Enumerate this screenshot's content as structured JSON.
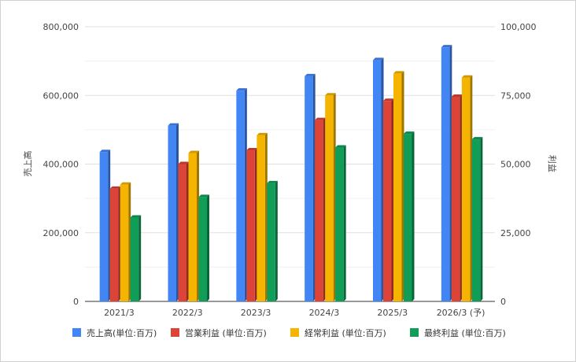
{
  "chart_data": {
    "type": "bar",
    "categories": [
      "2021/3",
      "2022/3",
      "2023/3",
      "2024/3",
      "2025/3",
      "2026/3 (予)"
    ],
    "axes": {
      "left": {
        "label": "売上高",
        "range": [
          0,
          800000
        ],
        "ticks": [
          0,
          200000,
          400000,
          600000,
          800000
        ],
        "tick_labels": [
          "0",
          "200,000",
          "400,000",
          "600,000",
          "800,000"
        ]
      },
      "right": {
        "label": "利益",
        "range": [
          0,
          100000
        ],
        "ticks": [
          0,
          25000,
          50000,
          75000,
          100000
        ],
        "tick_labels": [
          "0",
          "25,000",
          "50,000",
          "75,000",
          "100,000"
        ]
      }
    },
    "series": [
      {
        "name": "売上高(単位:百万)",
        "axis": "left",
        "color": "#4285f4",
        "values": [
          435000,
          512000,
          614000,
          656000,
          703000,
          740000
        ]
      },
      {
        "name": "営業利益 (単位:百万)",
        "axis": "right",
        "color": "#db4437",
        "values": [
          41000,
          50000,
          55000,
          66000,
          73000,
          74500
        ]
      },
      {
        "name": "経常利益 (単位:百万)",
        "axis": "right",
        "color": "#f4b400",
        "values": [
          42500,
          54000,
          60500,
          75000,
          83000,
          81500
        ]
      },
      {
        "name": "最終利益 (単位:百万)",
        "axis": "right",
        "color": "#0f9d58",
        "values": [
          30500,
          38000,
          43000,
          56000,
          61000,
          59000
        ]
      }
    ],
    "grid": true,
    "legend_position": "bottom"
  }
}
